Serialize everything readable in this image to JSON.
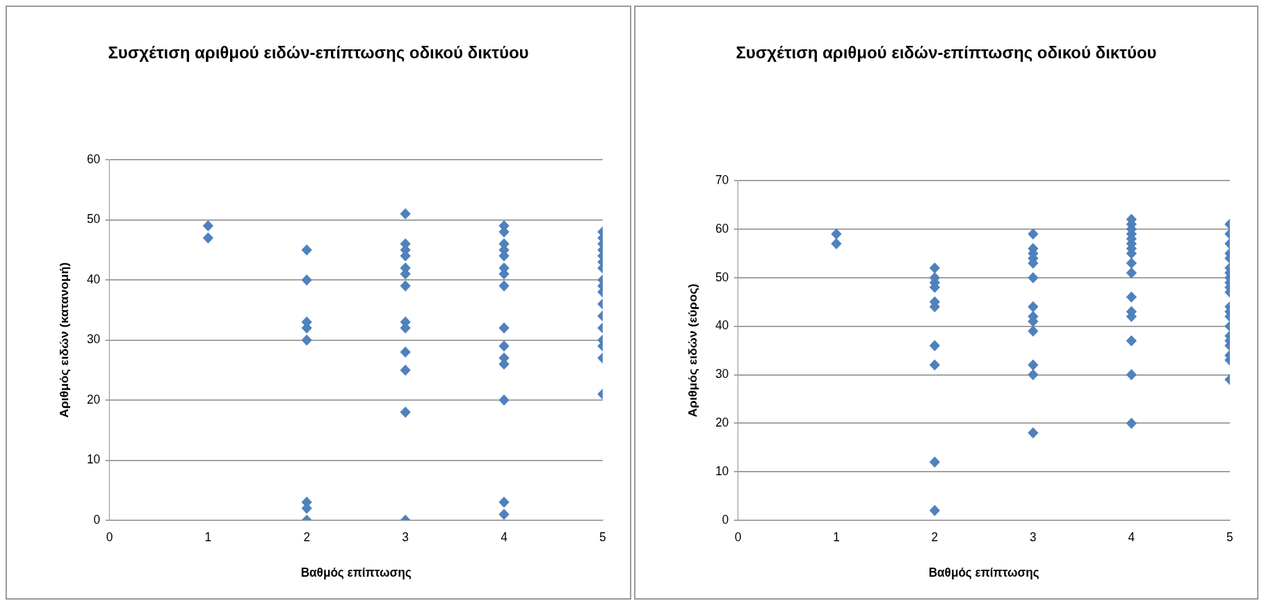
{
  "chart_data": [
    {
      "type": "scatter",
      "title": "Συσχέτιση αριθμού ειδών-επίπτωσης οδικού δικτύου",
      "xlabel": "Βαθμός επίπτωσης",
      "ylabel": "Αριθμός ειδών (κατανομή)",
      "xlim": [
        0,
        5
      ],
      "xticks": [
        0,
        1,
        2,
        3,
        4,
        5
      ],
      "ylim": [
        0,
        60
      ],
      "yticks": [
        0,
        10,
        20,
        30,
        40,
        50,
        60
      ],
      "grid": "y",
      "legend": false,
      "marker": "diamond",
      "series": [
        {
          "color": "#4f81bd",
          "x": [
            1,
            1,
            2,
            2,
            2,
            2,
            2,
            2,
            2,
            2,
            3,
            3,
            3,
            3,
            3,
            3,
            3,
            3,
            3,
            3,
            3,
            3,
            3,
            4,
            4,
            4,
            4,
            4,
            4,
            4,
            4,
            4,
            4,
            4,
            4,
            4,
            4,
            4,
            5,
            5,
            5,
            5,
            5,
            5,
            5,
            5,
            5,
            5,
            5,
            5,
            5,
            5,
            5,
            5,
            5
          ],
          "values": [
            49,
            47,
            45,
            40,
            33,
            32,
            30,
            3,
            2,
            0,
            51,
            46,
            45,
            44,
            42,
            41,
            39,
            33,
            32,
            28,
            25,
            18,
            0,
            49,
            48,
            46,
            45,
            44,
            42,
            41,
            39,
            32,
            29,
            27,
            26,
            20,
            3,
            1,
            48,
            47,
            46,
            45,
            44,
            43,
            42,
            40,
            39,
            38,
            36,
            34,
            32,
            30,
            29,
            27,
            21
          ]
        }
      ]
    },
    {
      "type": "scatter",
      "title": "Συσχέτιση αριθμού ειδών-επίπτωσης οδικού δικτύου",
      "xlabel": "Βαθμός επίπτωσης",
      "ylabel": "Αριθμός ειδών (εύρος)",
      "xlim": [
        0,
        5
      ],
      "xticks": [
        0,
        1,
        2,
        3,
        4,
        5
      ],
      "ylim": [
        0,
        70
      ],
      "yticks": [
        0,
        10,
        20,
        30,
        40,
        50,
        60,
        70
      ],
      "grid": "y",
      "legend": false,
      "marker": "diamond",
      "series": [
        {
          "color": "#4f81bd",
          "x": [
            1,
            1,
            2,
            2,
            2,
            2,
            2,
            2,
            2,
            2,
            2,
            2,
            3,
            3,
            3,
            3,
            3,
            3,
            3,
            3,
            3,
            3,
            3,
            3,
            3,
            4,
            4,
            4,
            4,
            4,
            4,
            4,
            4,
            4,
            4,
            4,
            4,
            4,
            4,
            4,
            4,
            5,
            5,
            5,
            5,
            5,
            5,
            5,
            5,
            5,
            5,
            5,
            5,
            5,
            5,
            5,
            5,
            5,
            5,
            5,
            5,
            5
          ],
          "values": [
            59,
            57,
            52,
            50,
            49,
            48,
            45,
            44,
            36,
            32,
            12,
            2,
            59,
            56,
            55,
            54,
            53,
            50,
            44,
            42,
            41,
            39,
            32,
            30,
            18,
            62,
            61,
            60,
            59,
            58,
            57,
            56,
            55,
            53,
            51,
            46,
            43,
            42,
            37,
            30,
            20,
            61,
            59,
            57,
            55,
            54,
            52,
            51,
            50,
            49,
            48,
            47,
            44,
            43,
            42,
            40,
            38,
            37,
            36,
            34,
            33,
            29
          ]
        }
      ]
    }
  ]
}
